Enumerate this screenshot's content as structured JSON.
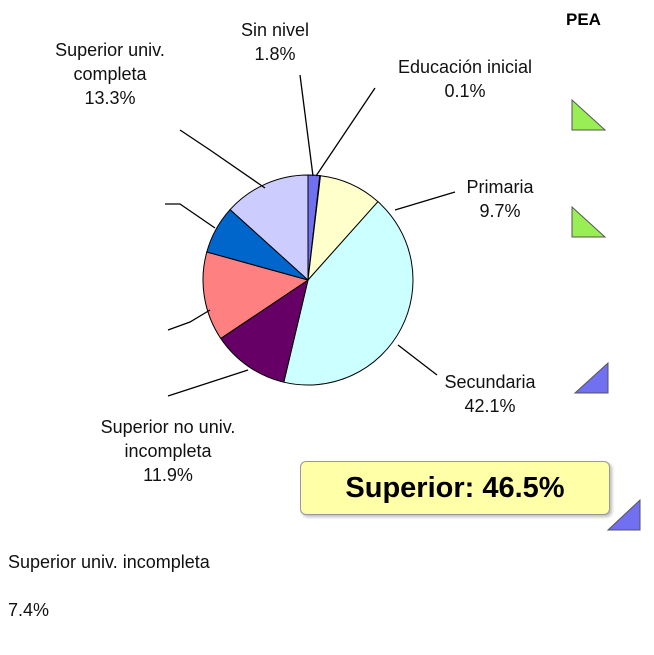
{
  "chart_data": {
    "type": "pie",
    "header": "PEA",
    "callout": "Superior: 46.5%",
    "categories": [
      "Sin nivel",
      "Educación inicial",
      "Primaria",
      "Secundaria",
      "Superior no univ. incompleta",
      null,
      "Superior univ. incompleta",
      "Superior univ. completa"
    ],
    "values": [
      1.8,
      0.1,
      9.7,
      42.1,
      11.9,
      13.7,
      7.4,
      13.3
    ],
    "value_labels": [
      "1.8%",
      "0.1%",
      "9.7%",
      "42.1%",
      "11.9%",
      null,
      "7.4%",
      "13.3%"
    ],
    "colors": [
      "#7070f0",
      "#333399",
      "#ffffcc",
      "#ccffff",
      "#660066",
      "#ff8080",
      "#0066cc",
      "#ccccff"
    ]
  }
}
